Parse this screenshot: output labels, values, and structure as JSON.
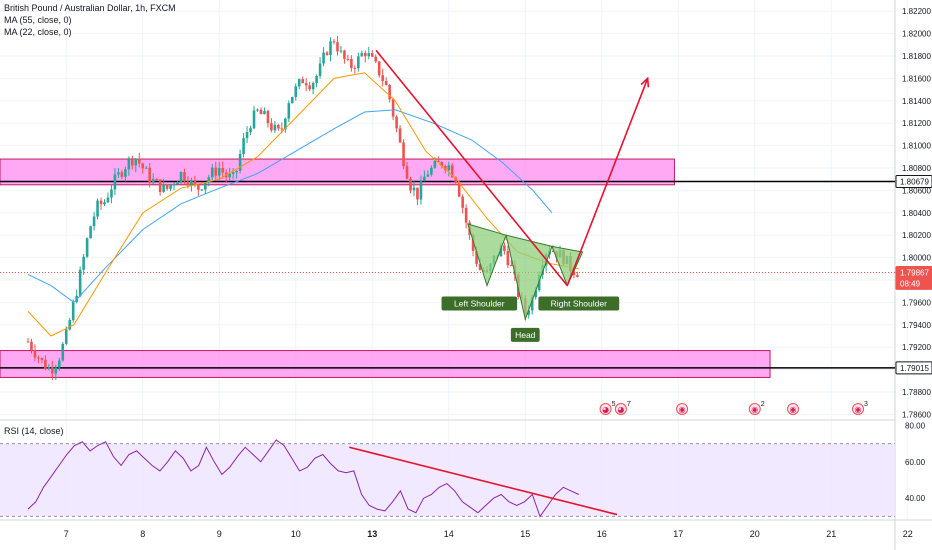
{
  "legend": {
    "title": "British Pound / Australian Dollar, 1h, FXCM",
    "ma_long": "MA (55, close, 0)",
    "ma_short": "MA (22, close, 0)"
  },
  "rsi_label": "RSI (14, close)",
  "x_ticks": [
    {
      "label": "7",
      "t": 0.5
    },
    {
      "label": "8",
      "t": 1.5
    },
    {
      "label": "9",
      "t": 2.5
    },
    {
      "label": "10",
      "t": 3.5
    },
    {
      "label": "13",
      "t": 4.5
    },
    {
      "label": "14",
      "t": 5.5
    },
    {
      "label": "15",
      "t": 6.5
    },
    {
      "label": "16",
      "t": 7.5
    },
    {
      "label": "17",
      "t": 8.5
    },
    {
      "label": "20",
      "t": 9.5
    },
    {
      "label": "21",
      "t": 10.5
    },
    {
      "label": "22",
      "t": 11.5
    }
  ],
  "price_axis": {
    "ticks": [
      "1.82200",
      "1.82000",
      "1.81800",
      "1.81600",
      "1.81400",
      "1.81200",
      "1.81000",
      "1.80800",
      "1.80600",
      "1.80400",
      "1.80200",
      "1.80000",
      "1.79800",
      "1.79600",
      "1.79400",
      "1.79200",
      "1.79000",
      "1.78800",
      "1.78600"
    ],
    "tags": [
      {
        "label": "1.80679",
        "value": 1.80679,
        "bg": "#ffffff",
        "fg": "#131722",
        "border": "#131722"
      },
      {
        "label": "1.79867",
        "value": 1.79867,
        "bg": "#ef5350",
        "fg": "#ffffff",
        "border": "#ef5350"
      },
      {
        "label": "08:49",
        "value": 1.7977,
        "bg": "#ef5350",
        "fg": "#ffffff",
        "border": "#ef5350"
      },
      {
        "label": "1.79015",
        "value": 1.79015,
        "bg": "#ffffff",
        "fg": "#131722",
        "border": "#131722"
      }
    ]
  },
  "rsi_axis": {
    "ticks": [
      "80.00",
      "60.00",
      "40.00"
    ]
  },
  "annotations": {
    "left_shoulder": "Left Shoulder",
    "head": "Head",
    "right_shoulder": "Right Shoulder"
  },
  "event_markers": [
    {
      "t": 7.55,
      "glyph": "◕",
      "count": "5"
    },
    {
      "t": 7.75,
      "glyph": "◕",
      "count": "7"
    },
    {
      "t": 8.55,
      "glyph": "◉",
      "count": ""
    },
    {
      "t": 9.5,
      "glyph": "◉",
      "count": "2"
    },
    {
      "t": 10.0,
      "glyph": "◉",
      "count": ""
    },
    {
      "t": 10.85,
      "glyph": "◉",
      "count": "3"
    }
  ],
  "colors": {
    "up": "#26a69a",
    "down": "#ef5350",
    "ma55": "#42a5f5",
    "ma22": "#ff9800",
    "zone_fill": "#ff8cf0",
    "zone_border": "#c2185b",
    "trend": "#e8112d",
    "pattern_fill": "#8fcf7c",
    "pattern_stroke": "#2e7d32",
    "label_bg": "#3c6e2a",
    "rsi_line": "#8e24aa",
    "rsi_band": "#ede3ff"
  },
  "chart_data": [
    {
      "type": "candlestick",
      "title": "British Pound / Australian Dollar, 1h, FXCM",
      "ylim": [
        1.7855,
        1.823
      ],
      "x_unit": "trading day index (7, 8, 9, 10, 13, 14, 15 …)",
      "series": [
        {
          "name": "British Pound / Australian Dollar",
          "points": [
            [
              0.0,
              1.7925
            ],
            [
              0.1,
              1.7915
            ],
            [
              0.2,
              1.7905
            ],
            [
              0.3,
              1.79
            ],
            [
              0.4,
              1.791
            ],
            [
              0.5,
              1.793
            ],
            [
              0.6,
              1.796
            ],
            [
              0.7,
              1.799
            ],
            [
              0.8,
              1.8025
            ],
            [
              0.9,
              1.8045
            ],
            [
              1.0,
              1.805
            ],
            [
              1.1,
              1.8065
            ],
            [
              1.2,
              1.8075
            ],
            [
              1.3,
              1.8085
            ],
            [
              1.4,
              1.809
            ],
            [
              1.5,
              1.808
            ],
            [
              1.6,
              1.807
            ],
            [
              1.7,
              1.8065
            ],
            [
              1.8,
              1.806
            ],
            [
              1.9,
              1.8068
            ],
            [
              2.0,
              1.8075
            ],
            [
              2.1,
              1.807
            ],
            [
              2.2,
              1.806
            ],
            [
              2.3,
              1.8068
            ],
            [
              2.4,
              1.8075
            ],
            [
              2.5,
              1.808
            ],
            [
              2.6,
              1.8072
            ],
            [
              2.7,
              1.807
            ],
            [
              2.8,
              1.81
            ],
            [
              2.9,
              1.812
            ],
            [
              3.0,
              1.813
            ],
            [
              3.1,
              1.8125
            ],
            [
              3.2,
              1.8115
            ],
            [
              3.3,
              1.811
            ],
            [
              3.4,
              1.814
            ],
            [
              3.5,
              1.815
            ],
            [
              3.6,
              1.816
            ],
            [
              3.7,
              1.8155
            ],
            [
              3.8,
              1.8165
            ],
            [
              3.9,
              1.8185
            ],
            [
              4.0,
              1.8195
            ],
            [
              4.1,
              1.818
            ],
            [
              4.2,
              1.817
            ],
            [
              4.3,
              1.8175
            ],
            [
              4.4,
              1.8185
            ],
            [
              4.5,
              1.8175
            ],
            [
              4.6,
              1.8165
            ],
            [
              4.7,
              1.815
            ],
            [
              4.8,
              1.812
            ],
            [
              4.9,
              1.809
            ],
            [
              5.0,
              1.8065
            ],
            [
              5.1,
              1.8055
            ],
            [
              5.2,
              1.8075
            ],
            [
              5.3,
              1.808
            ],
            [
              5.4,
              1.8085
            ],
            [
              5.5,
              1.8082
            ],
            [
              5.6,
              1.807
            ],
            [
              5.7,
              1.804
            ],
            [
              5.8,
              1.801
            ],
            [
              5.9,
              1.799
            ],
            [
              6.0,
              1.7985
            ],
            [
              6.1,
              1.8
            ],
            [
              6.2,
              1.801
            ],
            [
              6.3,
              1.7995
            ],
            [
              6.4,
              1.797
            ],
            [
              6.5,
              1.795
            ],
            [
              6.6,
              1.7965
            ],
            [
              6.7,
              1.7995
            ],
            [
              6.8,
              1.801
            ],
            [
              6.9,
              1.8005
            ],
            [
              7.0,
              1.8
            ],
            [
              7.1,
              1.799
            ],
            [
              7.2,
              1.7987
            ]
          ]
        }
      ],
      "moving_averages": [
        {
          "name": "MA (55, close, 0)",
          "points": [
            [
              0.0,
              1.7985
            ],
            [
              0.3,
              1.7975
            ],
            [
              0.6,
              1.796
            ],
            [
              1.0,
              1.799
            ],
            [
              1.5,
              1.8025
            ],
            [
              2.0,
              1.8048
            ],
            [
              2.5,
              1.8062
            ],
            [
              3.0,
              1.8075
            ],
            [
              3.5,
              1.8095
            ],
            [
              4.0,
              1.8115
            ],
            [
              4.4,
              1.813
            ],
            [
              4.8,
              1.8132
            ],
            [
              5.3,
              1.812
            ],
            [
              5.8,
              1.8105
            ],
            [
              6.2,
              1.8085
            ],
            [
              6.6,
              1.806
            ],
            [
              6.85,
              1.804
            ]
          ]
        },
        {
          "name": "MA (22, close, 0)",
          "points": [
            [
              0.0,
              1.7952
            ],
            [
              0.3,
              1.793
            ],
            [
              0.6,
              1.794
            ],
            [
              1.0,
              1.7985
            ],
            [
              1.5,
              1.804
            ],
            [
              2.0,
              1.8062
            ],
            [
              2.5,
              1.807
            ],
            [
              3.0,
              1.809
            ],
            [
              3.5,
              1.8125
            ],
            [
              4.0,
              1.816
            ],
            [
              4.4,
              1.8165
            ],
            [
              4.8,
              1.814
            ],
            [
              5.2,
              1.8095
            ],
            [
              5.6,
              1.807
            ],
            [
              6.0,
              1.8035
            ],
            [
              6.4,
              1.8005
            ],
            [
              6.8,
              1.7995
            ],
            [
              7.2,
              1.799
            ]
          ]
        }
      ],
      "zones": [
        {
          "top": 1.8088,
          "bottom": 1.8065,
          "t_end": 8.45
        },
        {
          "top": 1.7917,
          "bottom": 1.7893,
          "t_end": 9.7
        }
      ],
      "horizontal_lines": [
        {
          "value": 1.80679
        },
        {
          "value": 1.79015
        },
        {
          "value": 1.79867,
          "style": "dotted"
        }
      ],
      "trendline": {
        "from": [
          4.55,
          1.8185
        ],
        "to": [
          7.05,
          1.7975
        ]
      },
      "projection_arrow": {
        "from": [
          7.05,
          1.7975
        ],
        "to": [
          8.1,
          1.816
        ]
      },
      "pattern": {
        "left_shoulder": [
          [
            5.75,
            1.803
          ],
          [
            6.0,
            1.7975
          ],
          [
            6.25,
            1.802
          ]
        ],
        "head": [
          [
            6.25,
            1.802
          ],
          [
            6.5,
            1.7945
          ],
          [
            6.85,
            1.801
          ]
        ],
        "right_shoulder": [
          [
            6.85,
            1.801
          ],
          [
            7.05,
            1.7975
          ],
          [
            7.25,
            1.8005
          ]
        ]
      }
    },
    {
      "type": "line",
      "title": "RSI (14, close)",
      "ylim": [
        28,
        83
      ],
      "overbought": 70,
      "oversold": 30,
      "series": [
        {
          "name": "RSI (14, close)",
          "values": [
            34,
            38,
            46,
            52,
            58,
            64,
            69,
            71,
            66,
            69,
            71,
            63,
            58,
            64,
            66,
            62,
            58,
            55,
            60,
            66,
            62,
            55,
            58,
            68,
            60,
            53,
            57,
            63,
            68,
            64,
            60,
            66,
            72,
            69,
            62,
            55,
            57,
            62,
            64,
            59,
            55,
            54,
            55,
            42,
            36,
            34,
            33,
            38,
            44,
            34,
            32,
            40,
            42,
            46,
            48,
            44,
            38,
            35,
            32,
            36,
            40,
            42,
            38,
            36,
            38,
            42,
            30,
            36,
            42,
            46,
            44,
            42
          ]
        }
      ],
      "trendline": {
        "from": [
          4.2,
          68
        ],
        "to": [
          7.7,
          31
        ]
      }
    }
  ]
}
